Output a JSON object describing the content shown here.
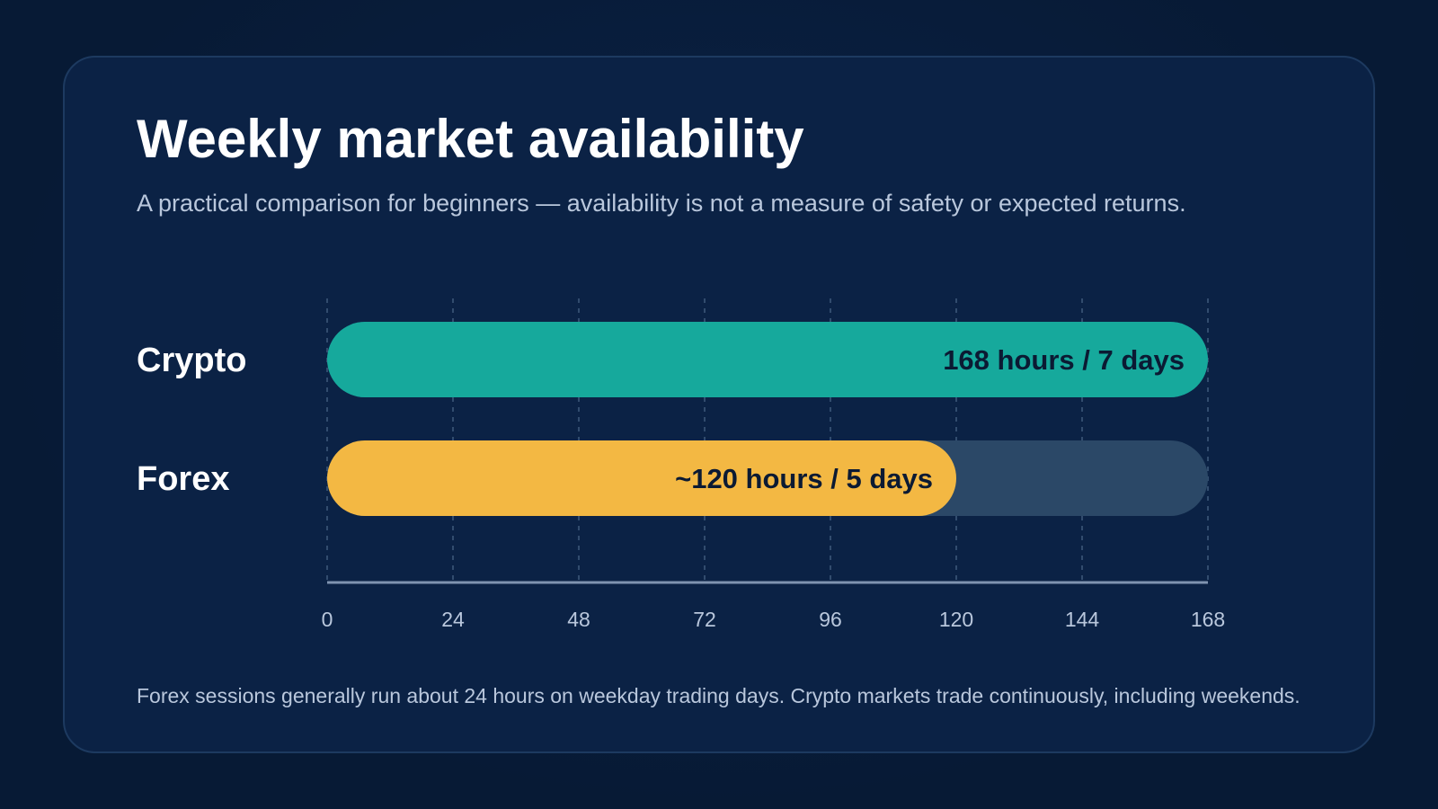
{
  "chart_data": {
    "type": "bar",
    "orientation": "horizontal",
    "title": "Weekly market availability",
    "subtitle": "A practical comparison for beginners — availability is not a measure of safety or expected returns.",
    "categories": [
      "Crypto",
      "Forex"
    ],
    "values": [
      168,
      120
    ],
    "value_labels": [
      "168 hours / 7 days",
      "~120 hours / 5 days"
    ],
    "bar_colors": [
      "#16a99c",
      "#f3b843"
    ],
    "track_color": "#2b4867",
    "xlim": [
      0,
      168
    ],
    "x_ticks": [
      0,
      24,
      48,
      72,
      96,
      120,
      144,
      168
    ],
    "grid": true,
    "footnote": "Forex sessions generally run about 24 hours on weekday trading days. Crypto markets trade continuously, including weekends."
  }
}
